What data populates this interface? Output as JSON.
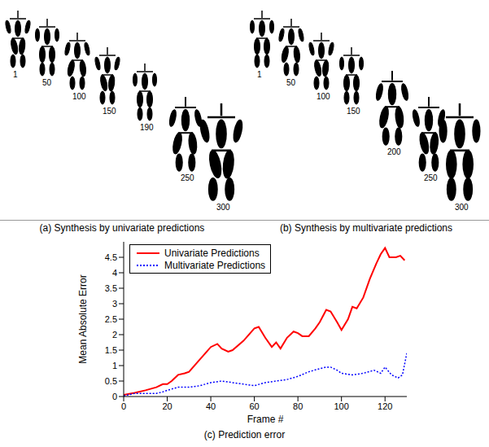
{
  "panels": [
    {
      "caption": "(a) Synthesis by univariate predictions",
      "frames": [
        1,
        50,
        100,
        150,
        190,
        250,
        300
      ]
    },
    {
      "caption": "(b) Synthesis by multivariate predictions",
      "frames": [
        1,
        50,
        100,
        150,
        200,
        250,
        300
      ]
    }
  ],
  "chart_data": {
    "type": "line",
    "title": "(c) Prediction error",
    "x_label": "Frame #",
    "y_label": "Mean Absolute Error",
    "xlim": [
      0,
      130
    ],
    "xticks": [
      0,
      20,
      40,
      60,
      80,
      100,
      120
    ],
    "ylim": [
      0,
      5
    ],
    "yticks": [
      0,
      0.5,
      1,
      1.5,
      2,
      2.5,
      3,
      3.5,
      4,
      4.5
    ],
    "grid": false,
    "legend": "upper left",
    "series": [
      {
        "name": "Univariate Predictions",
        "color": "#ff0000",
        "line_style": "solid",
        "x": [
          0,
          5,
          10,
          15,
          18,
          20,
          22,
          25,
          28,
          30,
          35,
          40,
          43,
          45,
          48,
          50,
          55,
          60,
          62,
          65,
          68,
          70,
          72,
          75,
          78,
          80,
          82,
          85,
          88,
          90,
          93,
          95,
          98,
          100,
          103,
          105,
          107,
          110,
          113,
          116,
          118,
          120,
          122,
          125,
          127,
          129
        ],
        "values": [
          0.05,
          0.12,
          0.2,
          0.3,
          0.4,
          0.4,
          0.5,
          0.7,
          0.75,
          0.8,
          1.2,
          1.6,
          1.7,
          1.55,
          1.45,
          1.5,
          1.8,
          2.2,
          2.25,
          1.9,
          1.6,
          1.75,
          1.55,
          1.9,
          2.1,
          2.05,
          1.95,
          1.95,
          2.2,
          2.4,
          2.8,
          2.75,
          2.4,
          2.15,
          2.5,
          2.9,
          2.85,
          3.2,
          3.8,
          4.3,
          4.6,
          4.8,
          4.5,
          4.5,
          4.55,
          4.4
        ]
      },
      {
        "name": "Multivariate Predictions",
        "color": "#0000ff",
        "line_style": "dotted",
        "x": [
          0,
          5,
          10,
          15,
          18,
          20,
          25,
          30,
          35,
          40,
          45,
          50,
          55,
          60,
          65,
          70,
          75,
          80,
          85,
          90,
          93,
          95,
          98,
          100,
          105,
          110,
          115,
          118,
          120,
          123,
          126,
          128,
          130
        ],
        "values": [
          0.02,
          0.1,
          0.1,
          0.1,
          0.15,
          0.2,
          0.3,
          0.3,
          0.35,
          0.45,
          0.5,
          0.45,
          0.4,
          0.35,
          0.45,
          0.5,
          0.55,
          0.65,
          0.8,
          0.9,
          0.95,
          0.95,
          0.85,
          0.75,
          0.7,
          0.75,
          0.85,
          0.75,
          0.95,
          0.7,
          0.6,
          0.7,
          1.4
        ]
      }
    ]
  }
}
